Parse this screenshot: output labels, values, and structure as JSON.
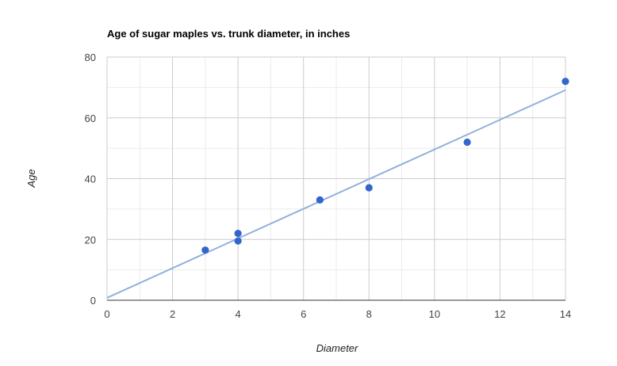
{
  "chart_data": {
    "type": "scatter",
    "title": "Age of sugar maples vs. trunk diameter, in inches",
    "xlabel": "Diameter",
    "ylabel": "Age",
    "xlim": [
      0,
      14
    ],
    "ylim": [
      0,
      80
    ],
    "x_ticks": [
      "0",
      "2",
      "4",
      "6",
      "8",
      "10",
      "12",
      "14"
    ],
    "y_ticks": [
      "0",
      "20",
      "40",
      "60",
      "80"
    ],
    "points": [
      {
        "x": 3,
        "y": 16.5
      },
      {
        "x": 4,
        "y": 19.5
      },
      {
        "x": 4,
        "y": 22
      },
      {
        "x": 6.5,
        "y": 33
      },
      {
        "x": 8,
        "y": 37
      },
      {
        "x": 11,
        "y": 52
      },
      {
        "x": 14,
        "y": 72
      }
    ],
    "trendline": {
      "type": "linear",
      "slope": 4.88,
      "intercept": 0.8
    },
    "grid": true,
    "colors": {
      "points": "#3366cc",
      "trendline": "#93b1dd",
      "gridline": "#cccccc",
      "minor_gridline": "#ebebeb",
      "baseline": "#333333"
    }
  }
}
